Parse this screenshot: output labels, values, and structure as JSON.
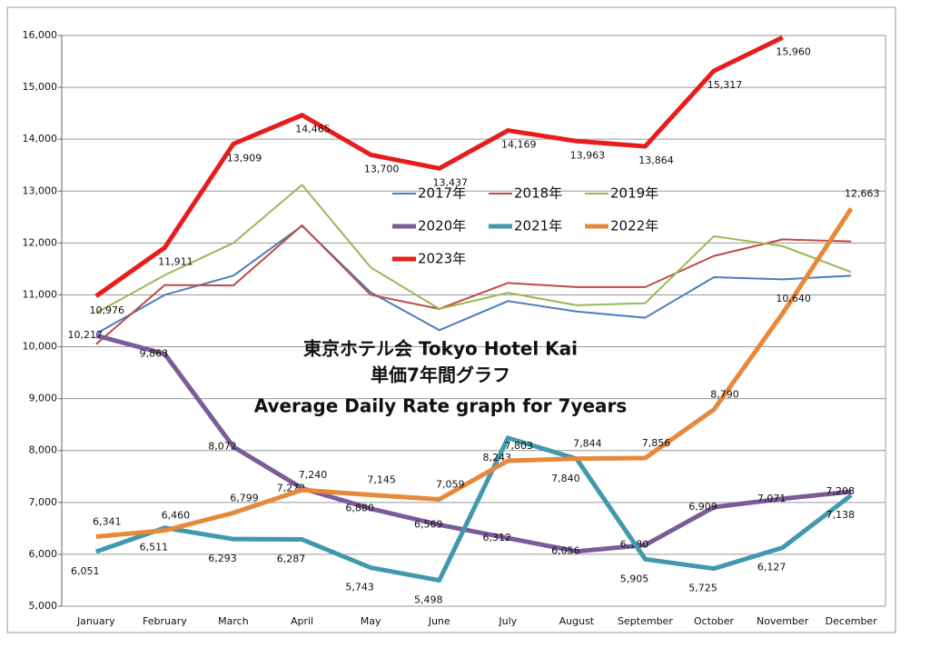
{
  "chart_data": {
    "type": "line",
    "title": [
      "東京ホテル会  Tokyo Hotel Kai",
      "単価7年間グラフ",
      "Average Daily Rate graph for 7years"
    ],
    "categories": [
      "January",
      "February",
      "March",
      "April",
      "May",
      "June",
      "July",
      "August",
      "September",
      "October",
      "November",
      "December"
    ],
    "ylim": [
      5000,
      16000
    ],
    "yticks": [
      {
        "value": 5000,
        "label": "5,000"
      },
      {
        "value": 6000,
        "label": "6,000"
      },
      {
        "value": 7000,
        "label": "7,000"
      },
      {
        "value": 8000,
        "label": "8,000"
      },
      {
        "value": 9000,
        "label": "9,000"
      },
      {
        "value": 10000,
        "label": "10,000"
      },
      {
        "value": 11000,
        "label": "11,000"
      },
      {
        "value": 12000,
        "label": "12,000"
      },
      {
        "value": 13000,
        "label": "13,000"
      },
      {
        "value": 14000,
        "label": "14,000"
      },
      {
        "value": 15000,
        "label": "15,000"
      },
      {
        "value": 16000,
        "label": "16,000"
      }
    ],
    "grid": true,
    "series": [
      {
        "name": "2017年",
        "color": "#4a7ebb",
        "values": [
          10250,
          11000,
          11370,
          12330,
          11050,
          10320,
          10880,
          10680,
          10560,
          11340,
          11300,
          11370
        ]
      },
      {
        "name": "2018年",
        "color": "#be4b48",
        "values": [
          10050,
          11190,
          11180,
          12340,
          11000,
          10730,
          11230,
          11150,
          11150,
          11750,
          12070,
          12030
        ]
      },
      {
        "name": "2019年",
        "color": "#98b954",
        "values": [
          10650,
          11380,
          12000,
          13120,
          11530,
          10730,
          11040,
          10800,
          10840,
          12130,
          11940,
          11440
        ]
      },
      {
        "name": "2020年",
        "color": "#7b5c9a",
        "values": [
          10217,
          9863,
          8072,
          7272,
          6880,
          6569,
          6312,
          6056,
          6180,
          6909,
          7071,
          7208
        ],
        "value_labels": [
          "10,217",
          "9,863",
          "8,072",
          "7,272",
          "6,880",
          "6,569",
          "6,312",
          "6,056",
          "6,180",
          "6,909",
          "7,071",
          "7,208"
        ]
      },
      {
        "name": "2021年",
        "color": "#4198af",
        "values": [
          6051,
          6511,
          6293,
          6287,
          5743,
          5498,
          8243,
          7840,
          5905,
          5725,
          6127,
          7138
        ],
        "value_labels": [
          "6,051",
          "6,511",
          "6,293",
          "6,287",
          "5,743",
          "5,498",
          "8,243",
          "7,840",
          "5,905",
          "5,725",
          "6,127",
          "7,138"
        ]
      },
      {
        "name": "2022年",
        "color": "#e8883a",
        "values": [
          6341,
          6460,
          6799,
          7240,
          7145,
          7059,
          7803,
          7844,
          7856,
          8790,
          10640,
          12663
        ],
        "value_labels": [
          "6,341",
          "6,460",
          "6,799",
          "7,240",
          "7,145",
          "7,059",
          "7,803",
          "7,844",
          "7,856",
          "8,790",
          "10,640",
          "12,663"
        ]
      },
      {
        "name": "2023年",
        "color": "#e81c1c",
        "values": [
          10976,
          11911,
          13909,
          14465,
          13700,
          13437,
          14169,
          13963,
          13864,
          15317,
          15960,
          null
        ],
        "value_labels": [
          "10,976",
          "11,911",
          "13,909",
          "14,465",
          "13,700",
          "13,437",
          "14,169",
          "13,963",
          "13,864",
          "15,317",
          "15,960",
          null
        ]
      }
    ]
  }
}
